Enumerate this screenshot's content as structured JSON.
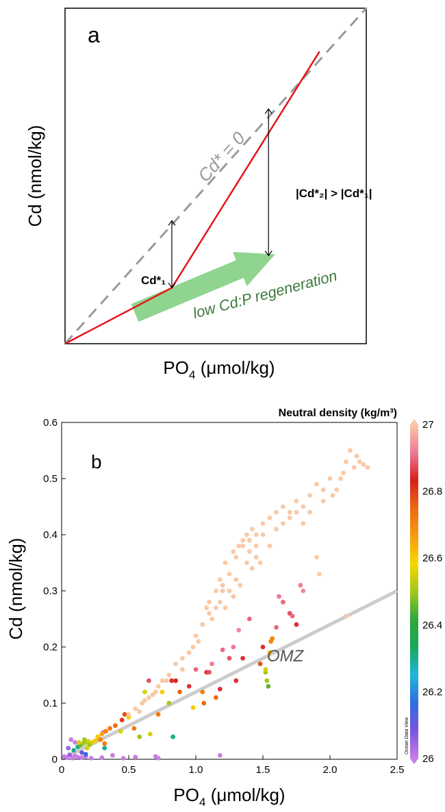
{
  "chart_data": [
    {
      "type": "line",
      "panel_label": "a",
      "xlabel_main": "PO",
      "xlabel_sub": "4",
      "xlabel_unit": " (μmol/kg)",
      "ylabel": "Cd (nmol/kg)",
      "x_ticks": [],
      "y_ticks": [],
      "xlim": [
        0,
        1
      ],
      "ylim": [
        0,
        1
      ],
      "series": [
        {
          "style": "dashed",
          "color": "#999999",
          "label": "Cd* = 0",
          "x": [
            0,
            1
          ],
          "y": [
            0,
            1
          ]
        },
        {
          "style": "solid",
          "color": "#e8131b",
          "x": [
            0,
            0.3545,
            0.8447
          ],
          "y": [
            0,
            0.1667,
            0.8708
          ]
        }
      ],
      "annotations": [
        {
          "label": "Cd*₁",
          "arrow_x": 0.3545,
          "arrow_y": [
            0.1667,
            0.3667
          ]
        },
        {
          "label": "|Cd*₂| > |Cd*₁|",
          "arrow_x": 0.6755,
          "arrow_y": [
            0.2625,
            0.7
          ]
        },
        {
          "label": "low Cd:P regeneration",
          "color": "#3c783c",
          "arrow_color": "#8fd48f",
          "arrow_from": [
            0.2318,
            0.0917
          ],
          "arrow_to": [
            0.6977,
            0.2667
          ]
        }
      ]
    },
    {
      "type": "scatter",
      "panel_label": "b",
      "xlabel_main": "PO",
      "xlabel_sub": "4",
      "xlabel_unit": " (μmol/kg)",
      "ylabel": "Cd (nmol/kg)",
      "xlim": [
        0,
        2.5
      ],
      "ylim": [
        0,
        0.6
      ],
      "x_ticks": [
        0,
        0.5,
        1.0,
        1.5,
        2.0,
        2.5
      ],
      "x_tick_labels": [
        "0",
        "0.5",
        "1.0",
        "1.5",
        "2.0",
        "2.5"
      ],
      "y_ticks": [
        0,
        0.1,
        0.2,
        0.3,
        0.4,
        0.5,
        0.6
      ],
      "y_tick_labels": [
        "0",
        "0.1",
        "0.2",
        "0.3",
        "0.4",
        "0.5",
        "0.6"
      ],
      "reference_line": {
        "x": [
          0,
          2.5
        ],
        "y": [
          0,
          0.3
        ],
        "color": "#cccccc"
      },
      "annotation": {
        "text": "OMZ",
        "x": 1.58,
        "y": 0.145
      },
      "colorbar": {
        "title": "Neutral density (kg/m³)",
        "min": 26,
        "max": 27,
        "ticks": [
          26,
          26.2,
          26.4,
          26.6,
          26.8,
          27
        ],
        "tick_labels": [
          "26",
          "26.2",
          "26.4",
          "26.6",
          "26.8",
          "27"
        ],
        "stops": [
          "#c77de6",
          "#7a54e0",
          "#2f6ce0",
          "#1fb8d8",
          "#18a85a",
          "#2ea83c",
          "#a0c81e",
          "#f6d800",
          "#f89a10",
          "#ec6a10",
          "#d81e1e",
          "#ee7a96",
          "#f9c9a6"
        ],
        "credit": "Ocean Data View"
      },
      "points": [
        [
          0.02,
          0.005,
          26.0
        ],
        [
          0.04,
          0.003,
          26.0
        ],
        [
          0.06,
          0.008,
          26.05
        ],
        [
          0.08,
          0.002,
          26.0
        ],
        [
          0.1,
          0.006,
          26.0
        ],
        [
          0.12,
          0.004,
          26.0
        ],
        [
          0.15,
          0.003,
          26.0
        ],
        [
          0.18,
          0.005,
          26.0
        ],
        [
          0.22,
          0.002,
          26.0
        ],
        [
          0.3,
          0.003,
          26.0
        ],
        [
          0.38,
          0.007,
          26.0
        ],
        [
          0.46,
          0.002,
          26.0
        ],
        [
          0.55,
          0.004,
          26.0
        ],
        [
          0.7,
          0.005,
          26.0
        ],
        [
          0.72,
          0.002,
          26.0
        ],
        [
          1.18,
          0.007,
          26.0
        ],
        [
          0.05,
          0.02,
          26.05
        ],
        [
          0.07,
          0.035,
          26.0
        ],
        [
          0.1,
          0.03,
          26.0
        ],
        [
          0.28,
          0.037,
          26.0
        ],
        [
          0.31,
          0.048,
          26.0
        ],
        [
          0.15,
          0.012,
          26.1
        ],
        [
          0.18,
          0.009,
          26.15
        ],
        [
          0.09,
          0.016,
          26.3
        ],
        [
          0.12,
          0.022,
          26.3
        ],
        [
          0.32,
          0.02,
          26.3
        ],
        [
          0.83,
          0.04,
          26.3
        ],
        [
          0.14,
          0.025,
          26.45
        ],
        [
          0.16,
          0.028,
          26.5
        ],
        [
          0.18,
          0.03,
          26.5
        ],
        [
          0.2,
          0.032,
          26.55
        ],
        [
          0.13,
          0.03,
          26.55
        ],
        [
          0.17,
          0.035,
          26.5
        ],
        [
          0.21,
          0.026,
          26.5
        ],
        [
          0.23,
          0.03,
          26.55
        ],
        [
          0.25,
          0.033,
          26.6
        ],
        [
          0.19,
          0.02,
          26.55
        ],
        [
          0.27,
          0.04,
          26.6
        ],
        [
          0.3,
          0.045,
          26.65
        ],
        [
          0.33,
          0.05,
          26.7
        ],
        [
          0.36,
          0.055,
          26.72
        ],
        [
          0.29,
          0.035,
          26.7
        ],
        [
          0.32,
          0.028,
          26.72
        ],
        [
          0.4,
          0.06,
          26.75
        ],
        [
          0.45,
          0.07,
          26.8
        ],
        [
          0.47,
          0.08,
          26.78
        ],
        [
          0.5,
          0.075,
          26.6
        ],
        [
          0.54,
          0.055,
          26.72
        ],
        [
          0.6,
          0.1,
          26.5
        ],
        [
          0.62,
          0.12,
          26.55
        ],
        [
          0.65,
          0.14,
          26.88
        ],
        [
          0.44,
          0.05,
          26.55
        ],
        [
          0.58,
          0.04,
          26.5
        ],
        [
          0.66,
          0.045,
          26.55
        ],
        [
          0.72,
          0.08,
          26.72
        ],
        [
          0.75,
          0.12,
          26.6
        ],
        [
          0.8,
          0.1,
          26.5
        ],
        [
          0.82,
          0.14,
          26.85
        ],
        [
          0.85,
          0.14,
          26.82
        ],
        [
          0.88,
          0.12,
          26.75
        ],
        [
          0.95,
          0.13,
          26.85
        ],
        [
          0.98,
          0.092,
          26.6
        ],
        [
          1.0,
          0.16,
          26.9
        ],
        [
          1.05,
          0.12,
          26.72
        ],
        [
          1.06,
          0.1,
          26.75
        ],
        [
          1.08,
          0.155,
          26.85
        ],
        [
          1.1,
          0.155,
          26.88
        ],
        [
          1.12,
          0.17,
          26.92
        ],
        [
          1.15,
          0.11,
          26.75
        ],
        [
          1.18,
          0.125,
          26.85
        ],
        [
          1.2,
          0.195,
          26.9
        ],
        [
          1.25,
          0.18,
          26.88
        ],
        [
          1.28,
          0.2,
          26.92
        ],
        [
          1.3,
          0.14,
          26.85
        ],
        [
          1.32,
          0.23,
          26.93
        ],
        [
          1.35,
          0.18,
          26.85
        ],
        [
          1.4,
          0.25,
          26.9
        ],
        [
          1.48,
          0.17,
          26.78
        ],
        [
          1.5,
          0.2,
          26.85
        ],
        [
          1.52,
          0.155,
          26.5
        ],
        [
          1.53,
          0.14,
          26.5
        ],
        [
          1.54,
          0.13,
          26.45
        ],
        [
          1.52,
          0.16,
          26.55
        ],
        [
          1.55,
          0.19,
          26.62
        ],
        [
          1.56,
          0.21,
          26.7
        ],
        [
          1.57,
          0.215,
          26.7
        ],
        [
          1.6,
          0.235,
          26.9
        ],
        [
          1.62,
          0.29,
          26.92
        ],
        [
          1.65,
          0.28,
          26.9
        ],
        [
          1.7,
          0.26,
          26.88
        ],
        [
          1.72,
          0.255,
          26.9
        ],
        [
          1.78,
          0.31,
          26.92
        ],
        [
          1.8,
          0.3,
          26.93
        ],
        [
          1.75,
          0.24,
          26.85
        ],
        [
          0.5,
          0.08,
          27
        ],
        [
          0.55,
          0.09,
          27
        ],
        [
          0.6,
          0.1,
          27
        ],
        [
          0.65,
          0.11,
          27
        ],
        [
          0.7,
          0.12,
          27
        ],
        [
          0.75,
          0.14,
          27
        ],
        [
          0.8,
          0.15,
          27
        ],
        [
          0.85,
          0.17,
          27
        ],
        [
          0.9,
          0.18,
          27
        ],
        [
          0.95,
          0.19,
          27
        ],
        [
          1.0,
          0.22,
          27
        ],
        [
          1.05,
          0.24,
          27
        ],
        [
          1.08,
          0.27,
          27
        ],
        [
          1.1,
          0.28,
          27
        ],
        [
          1.12,
          0.25,
          27
        ],
        [
          1.15,
          0.3,
          27
        ],
        [
          1.18,
          0.32,
          27
        ],
        [
          1.2,
          0.31,
          27
        ],
        [
          1.22,
          0.35,
          27
        ],
        [
          1.25,
          0.33,
          27
        ],
        [
          1.28,
          0.37,
          27
        ],
        [
          1.3,
          0.36,
          27
        ],
        [
          1.32,
          0.38,
          27
        ],
        [
          1.35,
          0.39,
          27
        ],
        [
          1.38,
          0.4,
          27
        ],
        [
          1.4,
          0.37,
          27
        ],
        [
          1.42,
          0.41,
          27
        ],
        [
          1.45,
          0.4,
          27
        ],
        [
          1.5,
          0.42,
          27
        ],
        [
          1.55,
          0.43,
          27
        ],
        [
          1.6,
          0.44,
          27
        ],
        [
          1.65,
          0.45,
          27
        ],
        [
          1.7,
          0.43,
          27
        ],
        [
          1.75,
          0.46,
          27
        ],
        [
          1.8,
          0.45,
          27
        ],
        [
          1.85,
          0.47,
          27
        ],
        [
          1.9,
          0.49,
          27
        ],
        [
          1.95,
          0.46,
          27
        ],
        [
          2.0,
          0.5,
          27
        ],
        [
          2.05,
          0.48,
          27
        ],
        [
          2.1,
          0.51,
          27
        ],
        [
          2.12,
          0.53,
          27
        ],
        [
          2.15,
          0.55,
          27
        ],
        [
          2.18,
          0.52,
          27
        ],
        [
          2.2,
          0.54,
          27
        ],
        [
          2.25,
          0.525,
          27
        ],
        [
          2.28,
          0.52,
          27
        ],
        [
          1.9,
          0.36,
          27
        ],
        [
          1.92,
          0.33,
          27
        ],
        [
          2.12,
          0.255,
          27
        ],
        [
          1.18,
          0.28,
          27
        ],
        [
          1.2,
          0.3,
          27
        ],
        [
          1.25,
          0.3,
          27
        ],
        [
          1.3,
          0.32,
          27
        ],
        [
          1.33,
          0.31,
          27
        ],
        [
          1.38,
          0.35,
          27
        ],
        [
          1.42,
          0.34,
          27
        ],
        [
          1.45,
          0.36,
          27
        ],
        [
          1.48,
          0.35,
          27
        ],
        [
          1.35,
          0.38,
          27
        ],
        [
          1.4,
          0.39,
          27
        ],
        [
          1.45,
          0.38,
          27
        ],
        [
          1.5,
          0.4,
          27
        ],
        [
          1.55,
          0.38,
          27
        ],
        [
          1.28,
          0.29,
          27
        ],
        [
          1.22,
          0.27,
          27
        ],
        [
          1.1,
          0.26,
          27
        ],
        [
          1.15,
          0.27,
          27
        ],
        [
          0.9,
          0.16,
          27
        ],
        [
          0.98,
          0.2,
          27
        ],
        [
          1.02,
          0.21,
          27
        ],
        [
          0.72,
          0.13,
          27
        ],
        [
          0.78,
          0.14,
          27
        ],
        [
          0.62,
          0.105,
          27
        ],
        [
          0.68,
          0.115,
          27
        ],
        [
          0.58,
          0.085,
          27
        ],
        [
          1.6,
          0.41,
          27
        ],
        [
          1.65,
          0.42,
          27
        ],
        [
          1.7,
          0.44,
          27
        ],
        [
          1.75,
          0.44,
          27
        ],
        [
          1.8,
          0.42,
          27
        ],
        [
          1.85,
          0.44,
          27
        ],
        [
          1.95,
          0.48,
          27
        ],
        [
          2.02,
          0.47,
          27
        ],
        [
          2.08,
          0.5,
          27
        ],
        [
          2.22,
          0.53,
          27
        ]
      ]
    }
  ]
}
